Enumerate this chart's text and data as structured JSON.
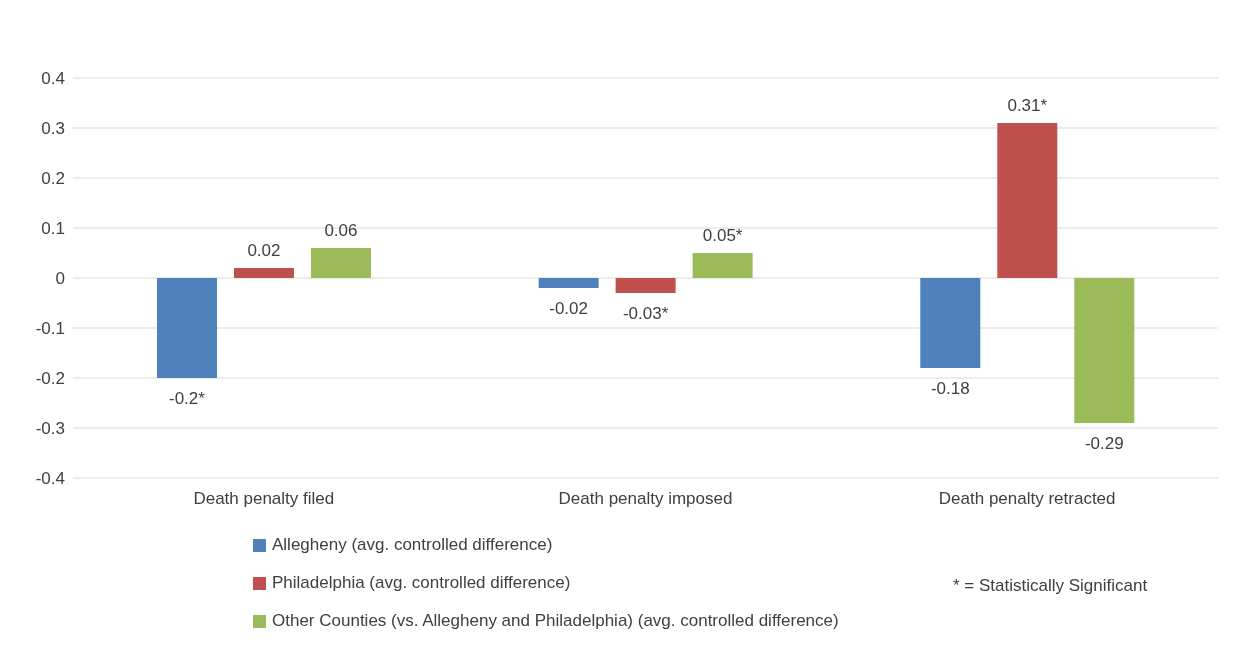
{
  "chart_data": {
    "type": "bar",
    "categories": [
      "Death penalty filed",
      "Death penalty imposed",
      "Death penalty retracted"
    ],
    "series": [
      {
        "name": "Allegheny (avg. controlled difference)",
        "color": "#4f81bd",
        "values": [
          -0.2,
          -0.02,
          -0.18
        ],
        "value_labels": [
          "-0.2*",
          "-0.02",
          "-0.18"
        ]
      },
      {
        "name": "Philadelphia (avg. controlled difference)",
        "color": "#c0504d",
        "values": [
          0.02,
          -0.03,
          0.31
        ],
        "value_labels": [
          "0.02",
          "-0.03*",
          "0.31*"
        ]
      },
      {
        "name": "Other Counties (vs. Allegheny and Philadelphia) (avg. controlled difference)",
        "color": "#9bbb59",
        "values": [
          0.06,
          0.05,
          -0.29
        ],
        "value_labels": [
          "0.06",
          "0.05*",
          "-0.29"
        ]
      }
    ],
    "ylim": [
      -0.4,
      0.4
    ],
    "yticks": [
      -0.4,
      -0.3,
      -0.2,
      -0.1,
      0,
      0.1,
      0.2,
      0.3,
      0.4
    ],
    "grid": "y",
    "legend": "bottom",
    "annotations": [
      "* = Statistically Significant"
    ]
  }
}
